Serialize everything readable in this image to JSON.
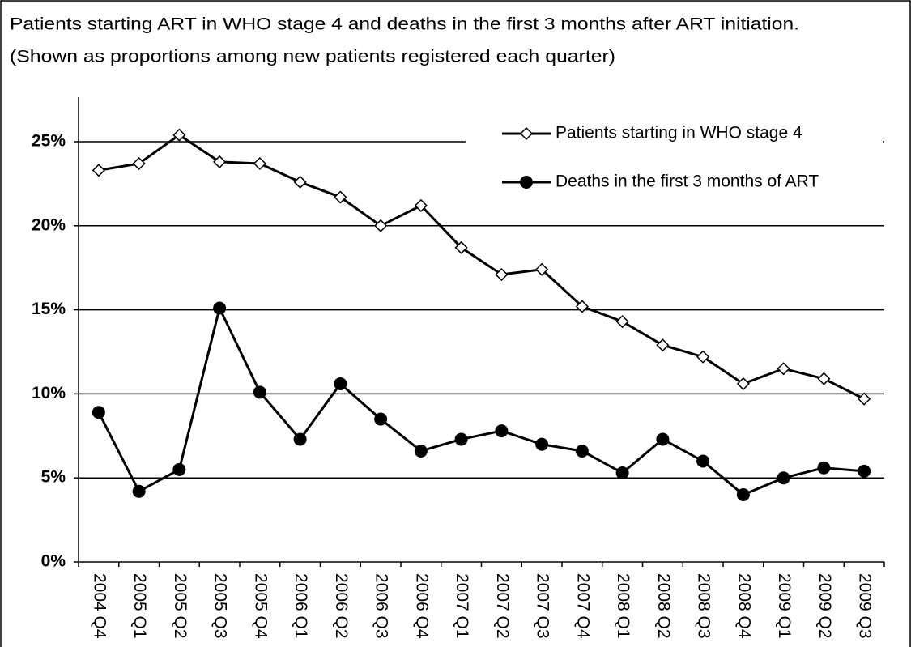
{
  "chart_data": {
    "type": "line",
    "title": "Patients starting ART in WHO stage 4 and deaths in the first 3 months after ART initiation.",
    "subtitle": "(Shown as proportions among new patients registered each quarter)",
    "categories": [
      "2004 Q4",
      "2005 Q1",
      "2005 Q2",
      "2005 Q3",
      "2005 Q4",
      "2006 Q1",
      "2006 Q2",
      "2006 Q3",
      "2006 Q4",
      "2007 Q1",
      "2007 Q2",
      "2007 Q3",
      "2007 Q4",
      "2008 Q1",
      "2008 Q2",
      "2008 Q3",
      "2008 Q4",
      "2009 Q1",
      "2009 Q2",
      "2009 Q3"
    ],
    "series": [
      {
        "name": "Patients starting in WHO stage 4",
        "color": "#000000",
        "marker": "diamond",
        "values": [
          23.3,
          23.7,
          25.4,
          23.8,
          23.7,
          22.6,
          21.7,
          20.0,
          21.2,
          18.7,
          17.1,
          17.4,
          15.2,
          14.3,
          12.9,
          12.2,
          10.6,
          11.5,
          10.9,
          9.7
        ]
      },
      {
        "name": "Deaths in the first 3 months of ART",
        "color": "#000000",
        "marker": "circle",
        "values": [
          8.9,
          4.2,
          5.5,
          15.1,
          10.1,
          7.3,
          10.6,
          8.5,
          6.6,
          7.3,
          7.8,
          7.0,
          6.6,
          5.3,
          7.3,
          6.0,
          4.0,
          5.0,
          5.6,
          5.4
        ]
      }
    ],
    "ylim": [
      0,
      25
    ],
    "yticks": [
      {
        "value": 0,
        "label": "0%"
      },
      {
        "value": 5,
        "label": "5%"
      },
      {
        "value": 10,
        "label": "10%"
      },
      {
        "value": 15,
        "label": "15%"
      },
      {
        "value": 20,
        "label": "20%"
      },
      {
        "value": 25,
        "label": "25%"
      }
    ],
    "grid": true,
    "legend": "top-right"
  }
}
